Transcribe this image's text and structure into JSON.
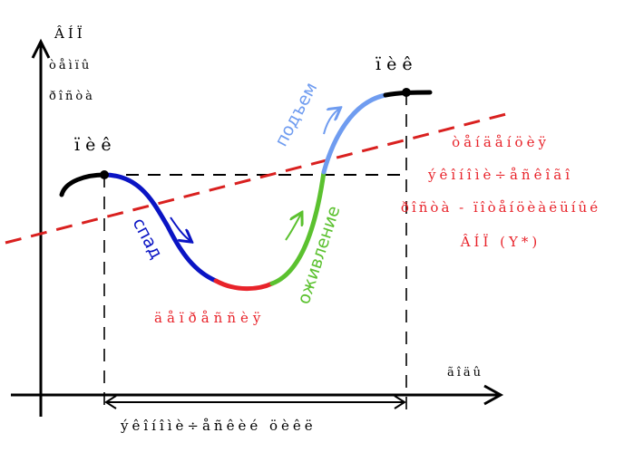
{
  "axes": {
    "y_label_lines": [
      "ÂÍÏ",
      "òåìïû",
      "ðîñòà"
    ],
    "x_label": "ãîäû"
  },
  "peak_left": "ïèê",
  "peak_right": "ïèê",
  "trough": "äåïðåññèÿ",
  "cycle_duration": "ýêîíîìè÷åñêèé öèêë",
  "trend_lines": [
    "òåíäåíöèÿ",
    "ýêîíîìè÷åñêîãî",
    "ðîñòà - ïîòåíöèàëüíûé",
    "ÂÍÏ (Y*)"
  ],
  "phases": {
    "decline": "спад",
    "recovery": "оживление",
    "rise": "подъем"
  },
  "colors": {
    "decline": "#0a14c4",
    "trough": "#e8232a",
    "recovery": "#5bc12f",
    "rise": "#6f9cf0",
    "trend": "#d9201f",
    "trend_text": "#e8232a",
    "axes": "#000000"
  }
}
